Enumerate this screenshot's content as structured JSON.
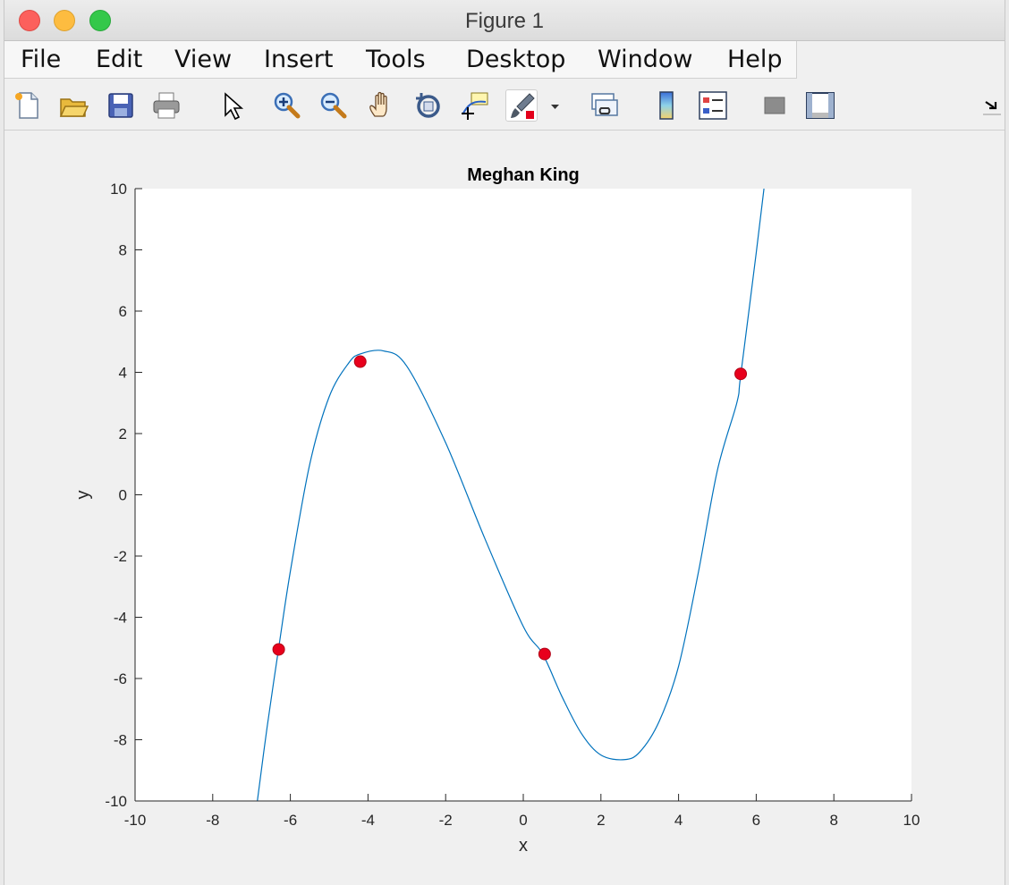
{
  "window": {
    "title": "Figure 1"
  },
  "menu": [
    "File",
    "Edit",
    "View",
    "Insert",
    "Tools",
    "Desktop",
    "Window",
    "Help"
  ],
  "toolbar": [
    "new-figure-icon",
    "open-file-icon",
    "save-icon",
    "print-icon",
    "select-pointer-icon",
    "zoom-in-icon",
    "zoom-out-icon",
    "pan-hand-icon",
    "rotate-3d-icon",
    "data-cursor-icon",
    "brush-icon",
    "brush-dropdown-icon",
    "link-plot-icon",
    "colorbar-icon",
    "legend-icon",
    "hide-plot-tools-icon",
    "show-plot-tools-icon",
    "dock-arrow-icon"
  ],
  "chart_data": {
    "type": "line",
    "title": "Meghan King",
    "xlabel": "x",
    "ylabel": "y",
    "xlim": [
      -10,
      10
    ],
    "ylim": [
      -10,
      10
    ],
    "xticks": [
      -10,
      -8,
      -6,
      -4,
      -2,
      0,
      2,
      4,
      6,
      8,
      10
    ],
    "yticks": [
      -10,
      -8,
      -6,
      -4,
      -2,
      0,
      2,
      4,
      6,
      8,
      10
    ],
    "grid": false,
    "line_color": "#0072bd",
    "marker_color": "#e8001c",
    "series": [
      {
        "type": "line",
        "x": [
          -6.85,
          -6.6,
          -6.3,
          -6.0,
          -5.5,
          -5.0,
          -4.5,
          -4.2,
          -3.6,
          -3.0,
          -2.0,
          -1.0,
          0.0,
          0.5,
          1.0,
          1.5,
          2.0,
          2.6,
          3.0,
          3.5,
          4.0,
          4.5,
          5.0,
          5.5,
          5.6,
          6.0,
          6.2
        ],
        "y": [
          -10.0,
          -7.6,
          -5.0,
          -2.5,
          1.0,
          3.2,
          4.3,
          4.6,
          4.7,
          4.2,
          1.7,
          -1.4,
          -4.3,
          -5.2,
          -6.6,
          -7.8,
          -8.5,
          -8.65,
          -8.4,
          -7.4,
          -5.6,
          -2.6,
          0.8,
          3.0,
          3.9,
          7.9,
          10.0
        ]
      },
      {
        "type": "scatter",
        "x": [
          -6.3,
          -4.2,
          0.55,
          5.6
        ],
        "y": [
          -5.05,
          4.35,
          -5.2,
          3.95
        ]
      }
    ]
  }
}
